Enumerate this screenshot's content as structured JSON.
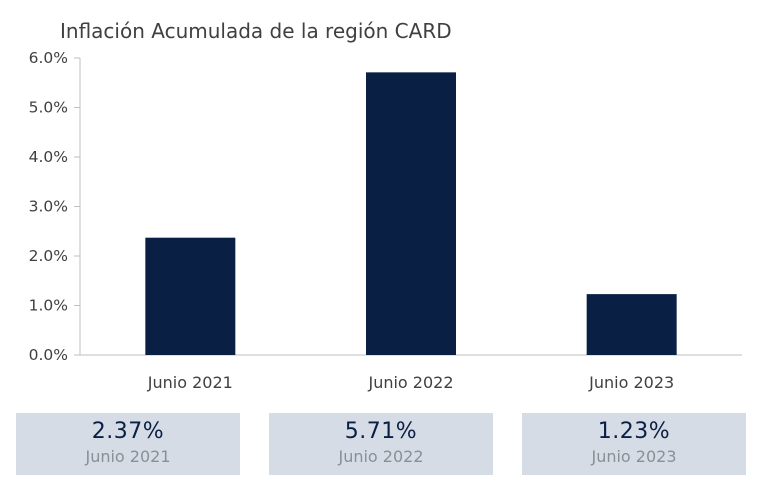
{
  "chart_data": {
    "type": "bar",
    "title": "Inflación Acumulada de la región CARD",
    "categories": [
      "Junio 2021",
      "Junio 2022",
      "Junio 2023"
    ],
    "values": [
      2.37,
      5.71,
      1.23
    ],
    "ylim": [
      0,
      6
    ],
    "yticks": [
      "0.0%",
      "1.0%",
      "2.0%",
      "3.0%",
      "4.0%",
      "5.0%",
      "6.0%"
    ],
    "xlabel": "",
    "ylabel": "",
    "grid": false,
    "bar_color": "#0a1f44"
  },
  "cards": [
    {
      "value": "2.37%",
      "label": "Junio 2021"
    },
    {
      "value": "5.71%",
      "label": "Junio 2022"
    },
    {
      "value": "1.23%",
      "label": "Junio 2023"
    }
  ]
}
